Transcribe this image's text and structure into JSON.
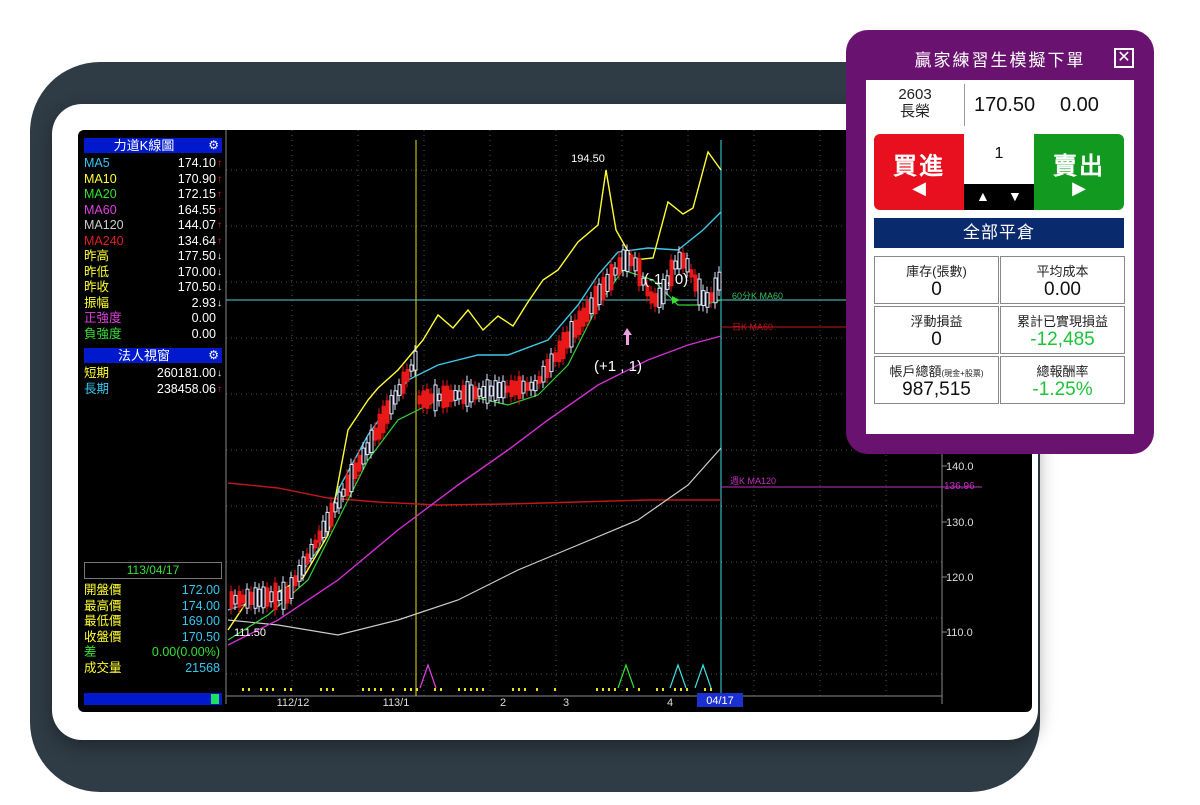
{
  "left_panel": {
    "kline_title": "力道K線圖",
    "ma_rows": [
      {
        "label": "MA5",
        "value": "174.10",
        "arrow": "↑",
        "color": "#35c8f0",
        "arrow_color": "#e02020"
      },
      {
        "label": "MA10",
        "value": "170.90",
        "arrow": "↑",
        "color": "#ffff33",
        "arrow_color": "#e02020"
      },
      {
        "label": "MA20",
        "value": "172.15",
        "arrow": "↑",
        "color": "#35e035",
        "arrow_color": "#e02020"
      },
      {
        "label": "MA60",
        "value": "164.55",
        "arrow": "↑",
        "color": "#e040e0",
        "arrow_color": "#e02020"
      },
      {
        "label": "MA120",
        "value": "144.07",
        "arrow": "↑",
        "color": "#cccccc",
        "arrow_color": "#e02020"
      },
      {
        "label": "MA240",
        "value": "134.64",
        "arrow": "↑",
        "color": "#e02020",
        "arrow_color": "#e02020"
      },
      {
        "label": "昨高",
        "value": "177.50",
        "arrow": "↓",
        "color": "#ffff33",
        "arrow_color": "#ffffff"
      },
      {
        "label": "昨低",
        "value": "170.00",
        "arrow": "↓",
        "color": "#ffff33",
        "arrow_color": "#ffffff"
      },
      {
        "label": "昨收",
        "value": "170.50",
        "arrow": "↓",
        "color": "#ffff33",
        "arrow_color": "#ffffff"
      },
      {
        "label": "振幅",
        "value": "2.93",
        "arrow": "↓",
        "color": "#ffff33",
        "arrow_color": "#ffffff"
      },
      {
        "label": "正強度",
        "value": "0.00",
        "arrow": "",
        "color": "#e040e0",
        "arrow_color": "#ffffff"
      },
      {
        "label": "負強度",
        "value": "0.00",
        "arrow": "",
        "color": "#35e035",
        "arrow_color": "#ffffff"
      }
    ],
    "inst_title": "法人視窗",
    "inst_rows": [
      {
        "label": "短期",
        "value": "260181.00",
        "arrow": "↓",
        "color": "#ffff33",
        "arrow_color": "#ffffff"
      },
      {
        "label": "長期",
        "value": "238458.06",
        "arrow": "↑",
        "color": "#35c8f0",
        "arrow_color": "#e02020"
      }
    ],
    "date": "113/04/17",
    "day_rows": [
      {
        "label": "開盤價",
        "value": "172.00",
        "color": "#ffff33",
        "value_color": "#35c8f0"
      },
      {
        "label": "最高價",
        "value": "174.00",
        "color": "#ffff33",
        "value_color": "#35c8f0"
      },
      {
        "label": "最低價",
        "value": "169.00",
        "color": "#ffff33",
        "value_color": "#35c8f0"
      },
      {
        "label": "收盤價",
        "value": "170.50",
        "color": "#ffff33",
        "value_color": "#35c8f0"
      },
      {
        "label": "差",
        "value": "0.00(0.00%)",
        "color": "#35e035",
        "value_color": "#35e035"
      },
      {
        "label": "成交量",
        "value": "21568",
        "color": "#ffff33",
        "value_color": "#35c8f0"
      }
    ]
  },
  "chart": {
    "annotations": {
      "high": "194.50",
      "low": "111.50",
      "position_a": "(+1 , 1)",
      "position_b": "(-1 , 0)"
    },
    "ma_labels": {
      "ma60_60min": "60分K MA60",
      "day_ma60": "日K MA60",
      "week_ma120": "週K MA120",
      "week_ma120_value": "136.96"
    },
    "y_ticks": [
      "140.0",
      "130.0",
      "120.0",
      "110.0"
    ],
    "x_ticks": [
      "112/12",
      "113/1",
      "2",
      "3",
      "4"
    ],
    "current_date": "04/17"
  },
  "trade_panel": {
    "title": "贏家練習生模擬下單",
    "close_icon": "close-icon",
    "stock_code": "2603",
    "stock_name": "長榮",
    "price": "170.50",
    "change": "0.00",
    "buy_label": "買進",
    "buy_arrow": "◀",
    "sell_label": "賣出",
    "sell_arrow": "▶",
    "quantity": "1",
    "qty_up": "▲",
    "qty_down": "▼",
    "close_all_label": "全部平倉",
    "stats": [
      {
        "label": "庫存(張數)",
        "value": "0",
        "green": false
      },
      {
        "label": "平均成本",
        "value": "0.00",
        "green": false
      },
      {
        "label": "浮動損益",
        "value": "0",
        "green": false
      },
      {
        "label": "累計已實現損益",
        "value": "-12,485",
        "green": true
      },
      {
        "label": "帳戶總額",
        "label_note": "(現金+股票)",
        "value": "987,515",
        "green": false
      },
      {
        "label": "總報酬率",
        "value": "-1.25%",
        "green": true
      }
    ]
  }
}
